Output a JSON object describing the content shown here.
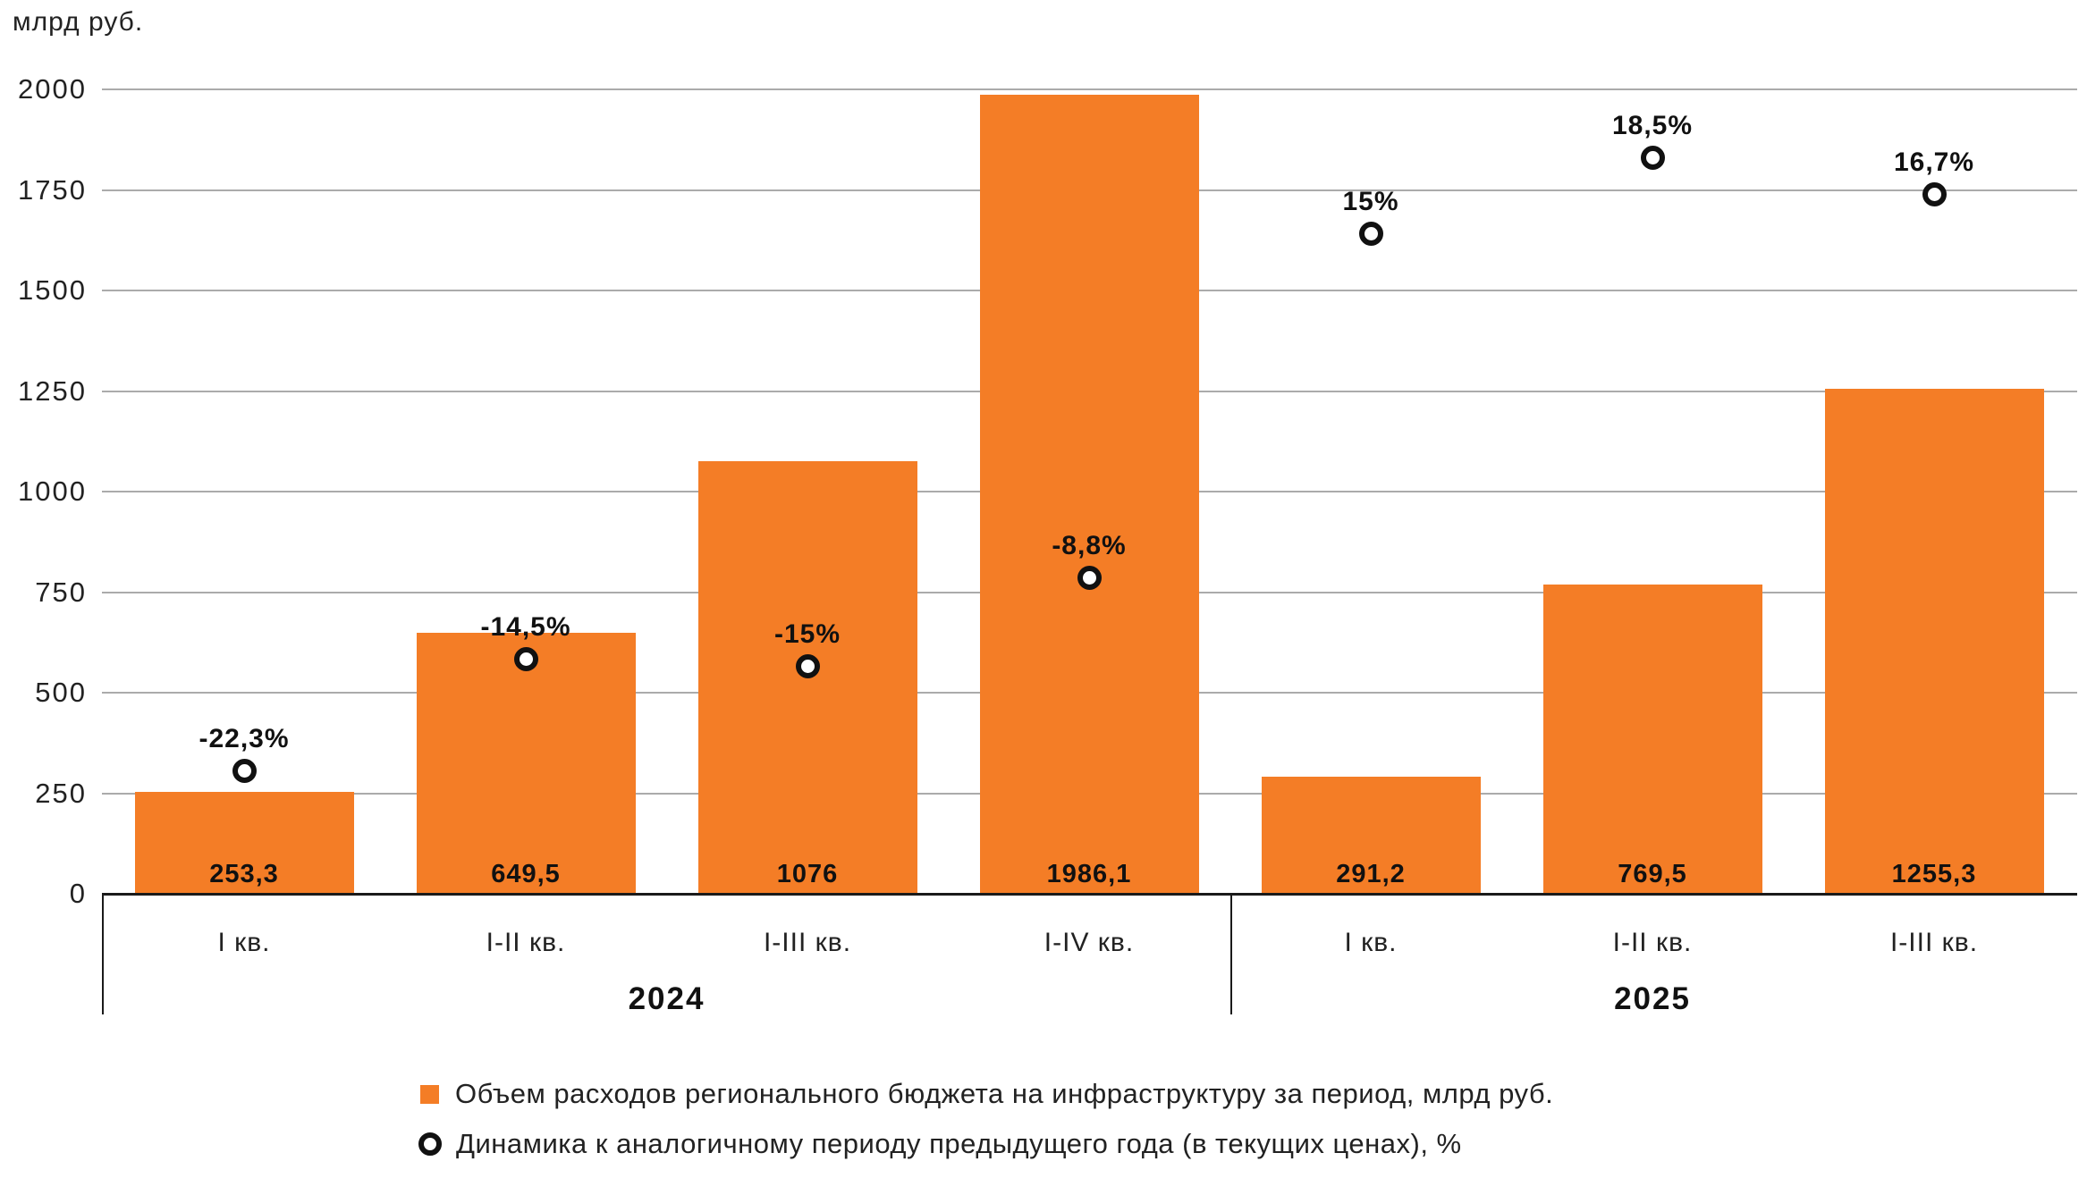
{
  "unit_label": "млрд руб.",
  "colors": {
    "bar": "#f47d26",
    "gridline": "#ababab",
    "axis": "#1a1a1a",
    "marker_stroke": "#111111",
    "marker_fill": "#ffffff"
  },
  "legend": {
    "bar_label": "Объем расходов регионального бюджета на инфраструктуру за период, млрд руб.",
    "marker_label": "Динамика к аналогичному периоду предыдущего года (в текущих ценах), %"
  },
  "chart_data": {
    "type": "bar",
    "title": "млрд руб.",
    "categories": [
      "I кв.",
      "I-II кв.",
      "I-III кв.",
      "I-IV кв.",
      "I кв.",
      "I-II кв.",
      "I-III кв."
    ],
    "groups": [
      {
        "label": "2024",
        "count": 4
      },
      {
        "label": "2025",
        "count": 3
      }
    ],
    "series": [
      {
        "name": "Объем расходов регионального бюджета на инфраструктуру за период, млрд руб.",
        "type": "bar",
        "values": [
          253.3,
          649.5,
          1076,
          1986.1,
          291.2,
          769.5,
          1255.3
        ],
        "labels": [
          "253,3",
          "649,5",
          "1076",
          "1986,1",
          "291,2",
          "769,5",
          "1255,3"
        ]
      },
      {
        "name": "Динамика к аналогичному периоду предыдущего года (в текущих ценах), %",
        "type": "marker",
        "values": [
          -22.3,
          -14.5,
          -15,
          -8.8,
          15,
          18.5,
          16.7
        ],
        "labels": [
          "-22,3%",
          "-14,5%",
          "-15%",
          "-8,8%",
          "15%",
          "18,5%",
          "16,7%"
        ],
        "marker_pos_primary_units": [
          307,
          584,
          567,
          787,
          1642,
          1831,
          1740
        ]
      }
    ],
    "ylabel": "млрд руб.",
    "yticks": [
      0,
      250,
      500,
      750,
      1000,
      1250,
      1500,
      1750,
      2000
    ],
    "ylim": [
      0,
      2000
    ],
    "grid": true,
    "legend_position": "bottom"
  }
}
